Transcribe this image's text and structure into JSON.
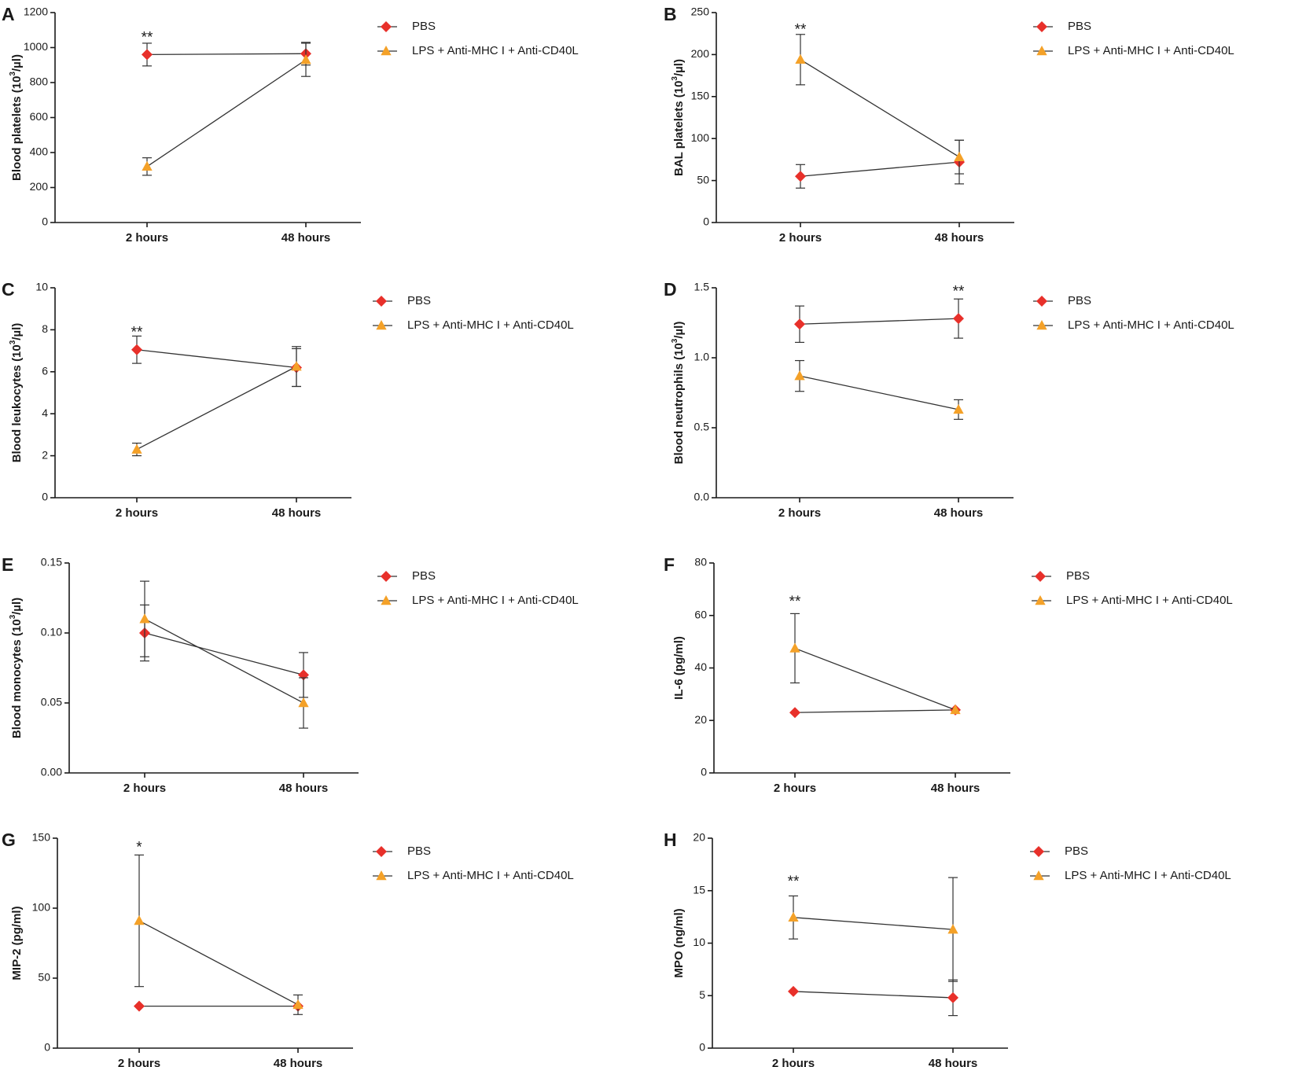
{
  "colors": {
    "pbs": "#e8302a",
    "lps": "#f4a128",
    "line": "#333333",
    "axis": "#1a1a1a"
  },
  "legend": {
    "pbs": "PBS",
    "lps": "LPS + Anti-MHC I + Anti-CD40L"
  },
  "categories": [
    "2 hours",
    "48 hours"
  ],
  "chart_data": [
    {
      "type": "line",
      "panel": "A",
      "title": "",
      "ylabel": "Blood platelets (10",
      "ylabel_sup": "3",
      "ylabel_suffix": "/µl)",
      "ylim": [
        0,
        1200
      ],
      "ytick_values": [
        0,
        200,
        400,
        600,
        800,
        1000,
        1200
      ],
      "ytick_labels": [
        "0",
        "200",
        "400",
        "600",
        "800",
        "1000",
        "1200"
      ],
      "categories": [
        "2 hours",
        "48 hours"
      ],
      "series": [
        {
          "name": "PBS",
          "values": [
            960,
            965
          ],
          "errors": [
            65,
            65
          ],
          "marker": "diamond"
        },
        {
          "name": "LPS + Anti-MHC I + Anti-CD40L",
          "values": [
            320,
            930
          ],
          "errors": [
            50,
            95
          ],
          "marker": "triangle"
        }
      ],
      "significance": [
        {
          "category_index": 0,
          "label": "**",
          "value": 1055
        }
      ]
    },
    {
      "type": "line",
      "panel": "B",
      "title": "",
      "ylabel": "BAL platelets (10",
      "ylabel_sup": "3",
      "ylabel_suffix": "/µl)",
      "ylim": [
        0,
        250
      ],
      "ytick_values": [
        0,
        50,
        100,
        150,
        200,
        250
      ],
      "ytick_labels": [
        "0",
        "50",
        "100",
        "150",
        "200",
        "250"
      ],
      "categories": [
        "2 hours",
        "48 hours"
      ],
      "series": [
        {
          "name": "PBS",
          "values": [
            55,
            72
          ],
          "errors": [
            14,
            26
          ],
          "marker": "diamond"
        },
        {
          "name": "LPS + Anti-MHC I + Anti-CD40L",
          "values": [
            194,
            78
          ],
          "errors": [
            30,
            20
          ],
          "marker": "triangle"
        }
      ],
      "significance": [
        {
          "category_index": 0,
          "label": "**",
          "value": 229
        }
      ]
    },
    {
      "type": "line",
      "panel": "C",
      "title": "",
      "ylabel": "Blood leukocytes (10",
      "ylabel_sup": "3",
      "ylabel_suffix": "/µl)",
      "ylim": [
        0,
        10
      ],
      "ytick_values": [
        0,
        2,
        4,
        6,
        8,
        10
      ],
      "ytick_labels": [
        "0",
        "2",
        "4",
        "6",
        "8",
        "10"
      ],
      "categories": [
        "2 hours",
        "48 hours"
      ],
      "series": [
        {
          "name": "PBS",
          "values": [
            7.05,
            6.2
          ],
          "errors": [
            0.65,
            0.9
          ],
          "marker": "diamond"
        },
        {
          "name": "LPS + Anti-MHC I + Anti-CD40L",
          "values": [
            2.3,
            6.25
          ],
          "errors": [
            0.3,
            0.95
          ],
          "marker": "triangle"
        }
      ],
      "significance": [
        {
          "category_index": 0,
          "label": "**",
          "value": 7.85
        }
      ]
    },
    {
      "type": "line",
      "panel": "D",
      "title": "",
      "ylabel": "Blood neutrophils (10",
      "ylabel_sup": "3",
      "ylabel_suffix": "/µl)",
      "ylim": [
        0,
        1.5
      ],
      "ytick_values": [
        0,
        0.5,
        1.0,
        1.5
      ],
      "ytick_labels": [
        "0.0",
        "0.5",
        "1.0",
        "1.5"
      ],
      "categories": [
        "2 hours",
        "48 hours"
      ],
      "series": [
        {
          "name": "PBS",
          "values": [
            1.24,
            1.28
          ],
          "errors": [
            0.13,
            0.14
          ],
          "marker": "diamond"
        },
        {
          "name": "LPS + Anti-MHC I + Anti-CD40L",
          "values": [
            0.87,
            0.63
          ],
          "errors": [
            0.11,
            0.07
          ],
          "marker": "triangle"
        }
      ],
      "significance": [
        {
          "category_index": 1,
          "label": "**",
          "value": 1.47
        }
      ]
    },
    {
      "type": "line",
      "panel": "E",
      "title": "",
      "ylabel": "Blood monocytes (10",
      "ylabel_sup": "3",
      "ylabel_suffix": "/µl)",
      "ylim": [
        0,
        0.15
      ],
      "ytick_values": [
        0,
        0.05,
        0.1,
        0.15
      ],
      "ytick_labels": [
        "0.00",
        "0.05",
        "0.10",
        "0.15"
      ],
      "categories": [
        "2 hours",
        "48 hours"
      ],
      "series": [
        {
          "name": "PBS",
          "values": [
            0.1,
            0.07
          ],
          "errors": [
            0.02,
            0.016
          ],
          "marker": "diamond"
        },
        {
          "name": "LPS + Anti-MHC I + Anti-CD40L",
          "values": [
            0.11,
            0.05
          ],
          "errors": [
            0.027,
            0.018
          ],
          "marker": "triangle"
        }
      ],
      "significance": []
    },
    {
      "type": "line",
      "panel": "F",
      "title": "",
      "ylabel": "IL-6 (pg/ml)",
      "ylabel_sup": "",
      "ylabel_suffix": "",
      "ylim": [
        0,
        80
      ],
      "ytick_values": [
        0,
        20,
        40,
        60,
        80
      ],
      "ytick_labels": [
        "0",
        "20",
        "40",
        "60",
        "80"
      ],
      "categories": [
        "2 hours",
        "48 hours"
      ],
      "series": [
        {
          "name": "PBS",
          "values": [
            23,
            24
          ],
          "errors": [
            0,
            0
          ],
          "marker": "diamond"
        },
        {
          "name": "LPS + Anti-MHC I + Anti-CD40L",
          "values": [
            47.5,
            24
          ],
          "errors": [
            13.2,
            0
          ],
          "marker": "triangle"
        }
      ],
      "significance": [
        {
          "category_index": 0,
          "label": "**",
          "value": 65
        }
      ]
    },
    {
      "type": "line",
      "panel": "G",
      "title": "",
      "ylabel": "MIP-2 (pg/ml)",
      "ylabel_sup": "",
      "ylabel_suffix": "",
      "ylim": [
        0,
        150
      ],
      "ytick_values": [
        0,
        50,
        100,
        150
      ],
      "ytick_labels": [
        "0",
        "50",
        "100",
        "150"
      ],
      "categories": [
        "2 hours",
        "48 hours"
      ],
      "series": [
        {
          "name": "PBS",
          "values": [
            30,
            30
          ],
          "errors": [
            0,
            0
          ],
          "marker": "diamond"
        },
        {
          "name": "LPS + Anti-MHC I + Anti-CD40L",
          "values": [
            91,
            31
          ],
          "errors": [
            47,
            7
          ],
          "marker": "triangle"
        }
      ],
      "significance": [
        {
          "category_index": 0,
          "label": "*",
          "value": 143
        }
      ]
    },
    {
      "type": "line",
      "panel": "H",
      "title": "",
      "ylabel": "MPO (ng/ml)",
      "ylabel_sup": "",
      "ylabel_suffix": "",
      "ylim": [
        0,
        20
      ],
      "ytick_values": [
        0,
        5,
        10,
        15,
        20
      ],
      "ytick_labels": [
        "0",
        "5",
        "10",
        "15",
        "20"
      ],
      "categories": [
        "2 hours",
        "48 hours"
      ],
      "series": [
        {
          "name": "PBS",
          "values": [
            5.4,
            4.8
          ],
          "errors": [
            0,
            1.7
          ],
          "marker": "diamond"
        },
        {
          "name": "LPS + Anti-MHC I + Anti-CD40L",
          "values": [
            12.45,
            11.3
          ],
          "errors": [
            2.05,
            4.95
          ],
          "marker": "triangle"
        }
      ],
      "significance": [
        {
          "category_index": 0,
          "label": "**",
          "value": 15.8
        }
      ]
    }
  ]
}
